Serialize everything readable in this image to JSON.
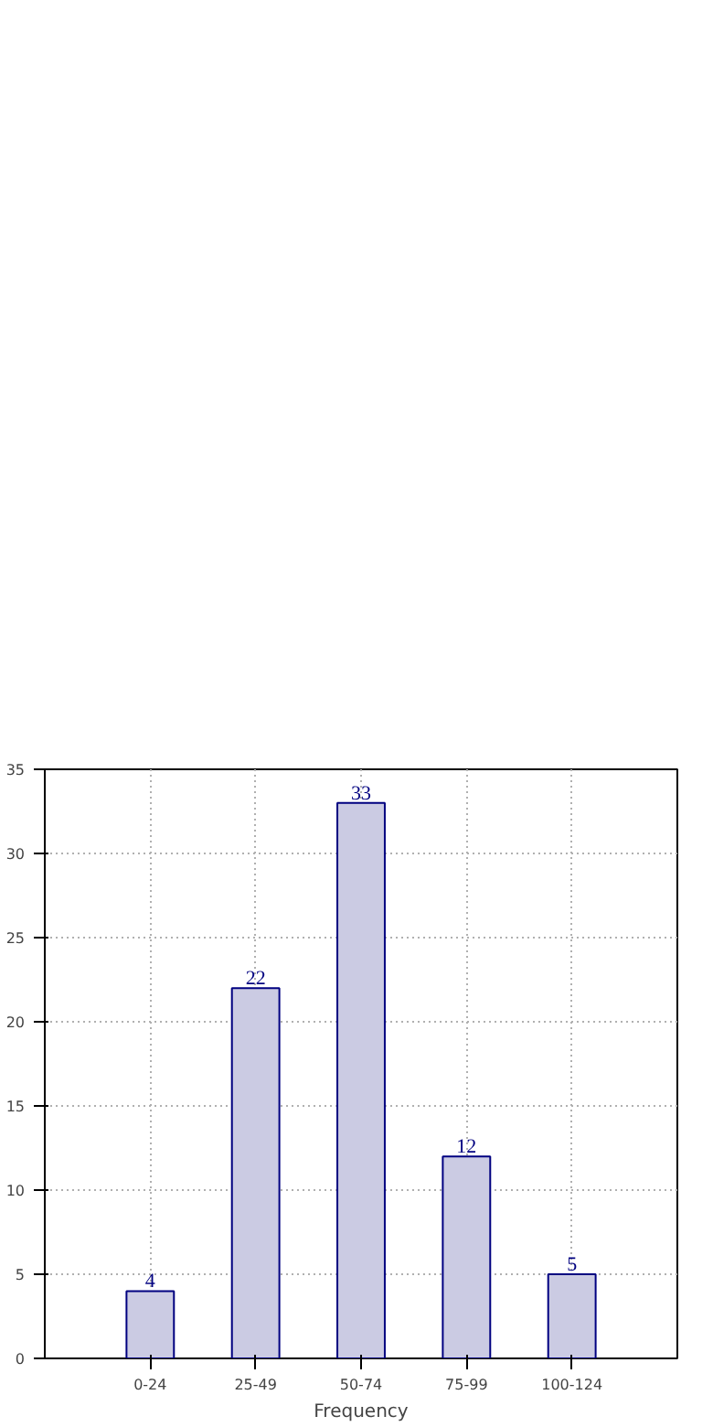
{
  "chart_data": {
    "type": "bar",
    "xlabel": "Frequency",
    "categories": [
      "0-24",
      "25-49",
      "50-74",
      "75-99",
      "100-124"
    ],
    "values": [
      4,
      22,
      33,
      12,
      5
    ],
    "color": "#cbcbe3",
    "ylim": [
      0,
      35
    ],
    "yticks": [
      0,
      5,
      10,
      15,
      20,
      25,
      30,
      35
    ],
    "grid": true,
    "data_labels": true
  }
}
